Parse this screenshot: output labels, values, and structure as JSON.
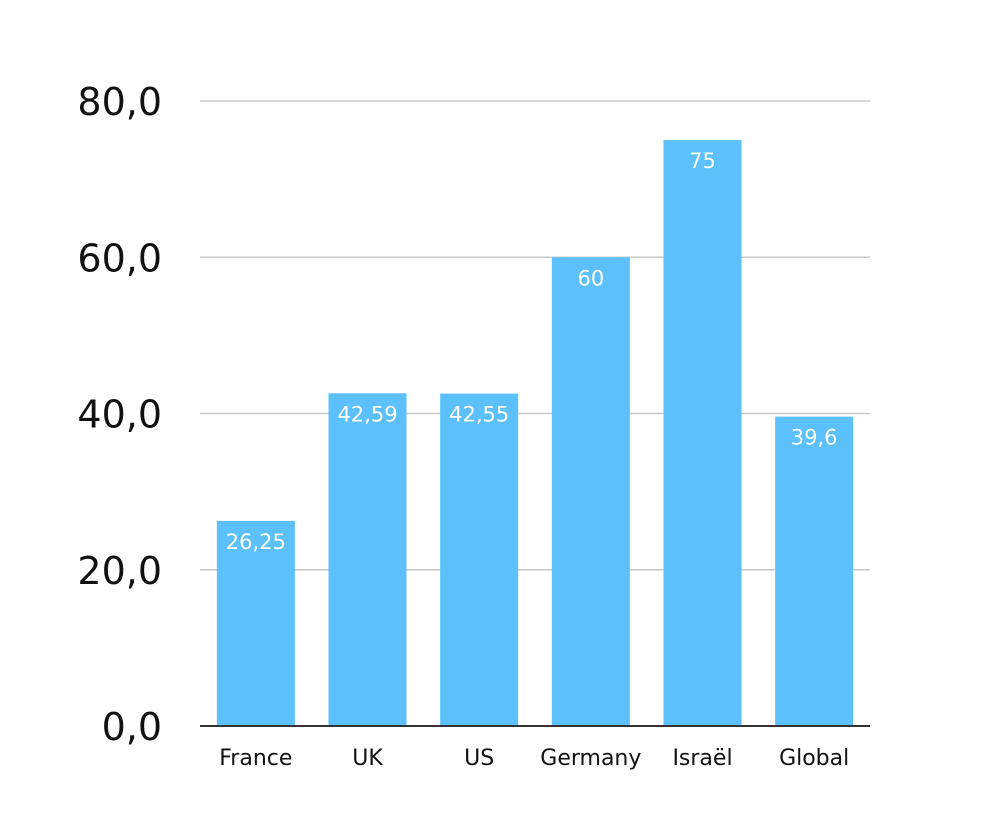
{
  "chart_data": {
    "type": "bar",
    "title": "",
    "xlabel": "",
    "ylabel": "",
    "categories": [
      "France",
      "UK",
      "US",
      "Germany",
      "Israël",
      "Global"
    ],
    "values": [
      26.25,
      42.59,
      42.55,
      60,
      75,
      39.6
    ],
    "value_labels": [
      "26,25",
      "42,59",
      "42,55",
      "60",
      "75",
      "39,6"
    ],
    "ylim": [
      0,
      80
    ],
    "y_ticks": [
      0,
      20,
      40,
      60,
      80
    ],
    "y_tick_labels": [
      "0,0",
      "20,0",
      "40,0",
      "60,0",
      "80,0"
    ],
    "grid": true,
    "legend": "none",
    "colors": {
      "bar": "#5BC0FB",
      "grid": "#c8c8c8",
      "axis": "#333333",
      "tick_text": "#111111",
      "value_text": "#ffffff"
    }
  }
}
